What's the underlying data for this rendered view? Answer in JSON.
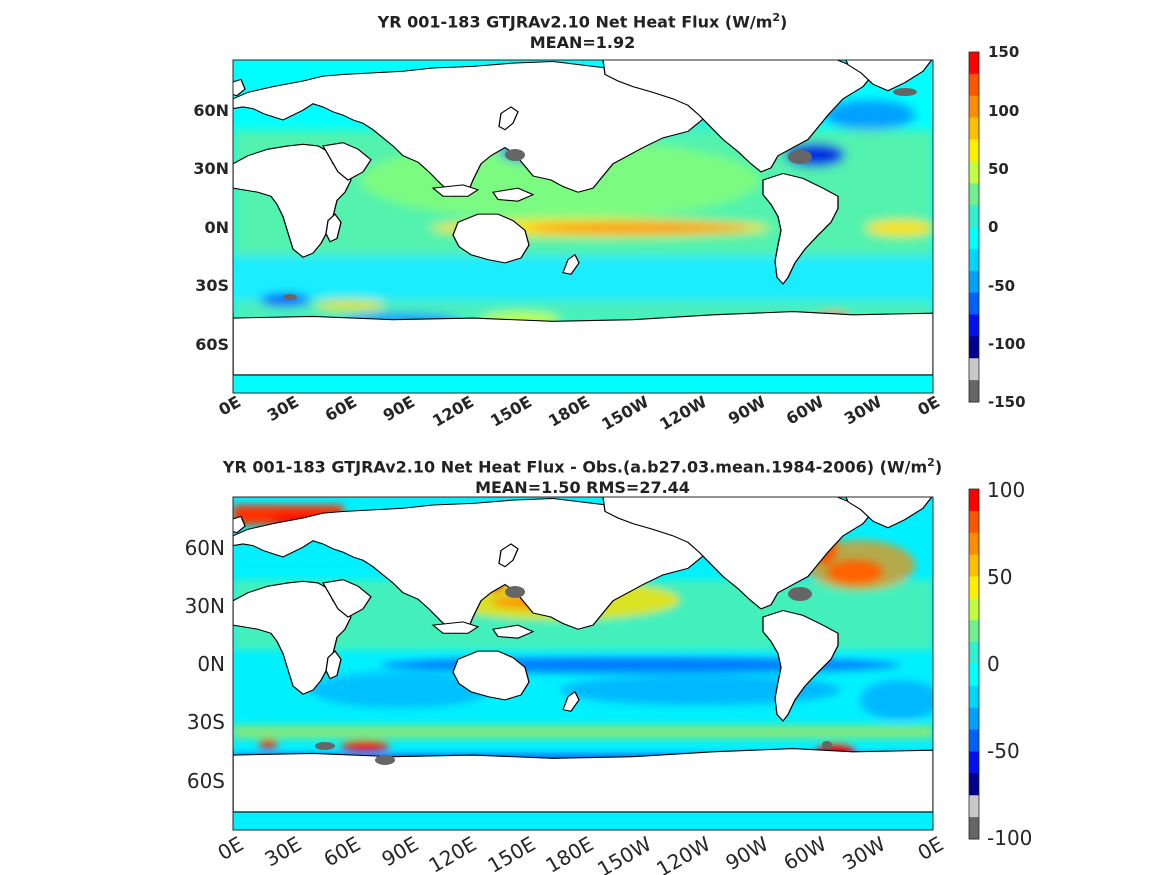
{
  "panels": [
    {
      "title_main": "YR 001-183 GTJRAv2.10  Net Heat Flux (W/m",
      "title_sup": "2",
      "title_end": ")",
      "subtitle": "MEAN=1.92",
      "lat_ticks": [
        "60N",
        "30N",
        "0N",
        "30S",
        "60S"
      ],
      "lon_ticks": [
        "0E",
        "30E",
        "60E",
        "90E",
        "120E",
        "150E",
        "180E",
        "150W",
        "120W",
        "90W",
        "60W",
        "30W",
        "0E"
      ],
      "colorbar_ticks": [
        "150",
        "100",
        "50",
        "0",
        "-50",
        "-100",
        "-150"
      ]
    },
    {
      "title_main": "YR 001-183 GTJRAv2.10  Net Heat Flux - Obs.(a.b27.03.mean.1984-2006) (W/m",
      "title_sup": "2",
      "title_end": ")",
      "subtitle": "MEAN=1.50 RMS=27.44",
      "lat_ticks": [
        "60N",
        "30N",
        "0N",
        "30S",
        "60S"
      ],
      "lon_ticks": [
        "0E",
        "30E",
        "60E",
        "90E",
        "120E",
        "150E",
        "180E",
        "150W",
        "120W",
        "90W",
        "60W",
        "30W",
        "0E"
      ],
      "colorbar_ticks": [
        "100",
        "50",
        "0",
        "-50",
        "-100"
      ]
    }
  ],
  "colors": {
    "land": "#ffffff",
    "missing_gray": "#666666",
    "colorbar": [
      "#ff0000",
      "#ff5500",
      "#ff8c00",
      "#ffbf00",
      "#ffee00",
      "#bfff40",
      "#6ff08f",
      "#30f0cf",
      "#00ffff",
      "#00d6ff",
      "#00a0ff",
      "#0060ff",
      "#0010f0",
      "#00008f",
      "#c8c8c8",
      "#666666"
    ]
  }
}
